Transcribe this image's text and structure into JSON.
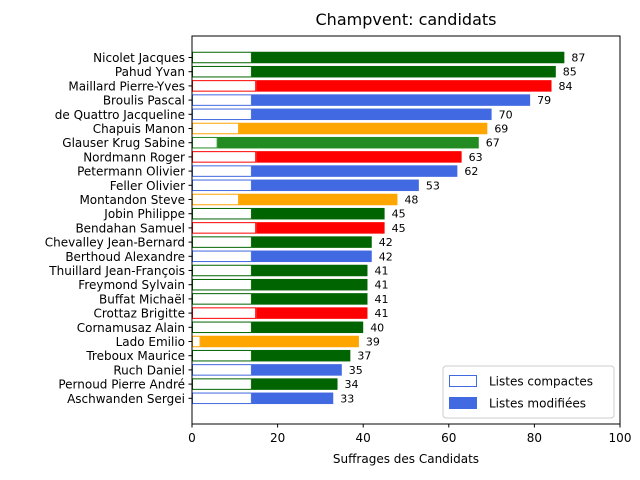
{
  "chart_data": {
    "type": "bar",
    "orientation": "horizontal",
    "title": "Champvent: candidats",
    "xlabel": "Suffrages des Candidats",
    "ylabel": "",
    "xlim": [
      0,
      100
    ],
    "xticks": [
      0,
      20,
      40,
      60,
      80,
      100
    ],
    "grid": false,
    "legend": {
      "placement": "lower-right",
      "entries": [
        {
          "label": "Listes compactes",
          "style": "outline",
          "color": "#4169e1"
        },
        {
          "label": "Listes modifiées",
          "style": "filled",
          "color": "#4169e1"
        }
      ]
    },
    "candidates": [
      {
        "name": "Nicolet Jacques",
        "total": 87,
        "compact": 14,
        "color": "#006400"
      },
      {
        "name": "Pahud Yvan",
        "total": 85,
        "compact": 14,
        "color": "#006400"
      },
      {
        "name": "Maillard Pierre-Yves",
        "total": 84,
        "compact": 15,
        "color": "#ff0000"
      },
      {
        "name": "Broulis Pascal",
        "total": 79,
        "compact": 14,
        "color": "#4169e1"
      },
      {
        "name": "de Quattro Jacqueline",
        "total": 70,
        "compact": 14,
        "color": "#4169e1"
      },
      {
        "name": "Chapuis Manon",
        "total": 69,
        "compact": 11,
        "color": "#ffa500"
      },
      {
        "name": "Glauser Krug Sabine",
        "total": 67,
        "compact": 6,
        "color": "#228b22"
      },
      {
        "name": "Nordmann Roger",
        "total": 63,
        "compact": 15,
        "color": "#ff0000"
      },
      {
        "name": "Petermann Olivier",
        "total": 62,
        "compact": 14,
        "color": "#4169e1"
      },
      {
        "name": "Feller Olivier",
        "total": 53,
        "compact": 14,
        "color": "#4169e1"
      },
      {
        "name": "Montandon Steve",
        "total": 48,
        "compact": 11,
        "color": "#ffa500"
      },
      {
        "name": "Jobin Philippe",
        "total": 45,
        "compact": 14,
        "color": "#006400"
      },
      {
        "name": "Bendahan Samuel",
        "total": 45,
        "compact": 15,
        "color": "#ff0000"
      },
      {
        "name": "Chevalley Jean-Bernard",
        "total": 42,
        "compact": 14,
        "color": "#006400"
      },
      {
        "name": "Berthoud Alexandre",
        "total": 42,
        "compact": 14,
        "color": "#4169e1"
      },
      {
        "name": "Thuillard Jean-François",
        "total": 41,
        "compact": 14,
        "color": "#006400"
      },
      {
        "name": "Freymond Sylvain",
        "total": 41,
        "compact": 14,
        "color": "#006400"
      },
      {
        "name": "Buffat Michaël",
        "total": 41,
        "compact": 14,
        "color": "#006400"
      },
      {
        "name": "Crottaz Brigitte",
        "total": 41,
        "compact": 15,
        "color": "#ff0000"
      },
      {
        "name": "Cornamusaz Alain",
        "total": 40,
        "compact": 14,
        "color": "#006400"
      },
      {
        "name": "Lado Emilio",
        "total": 39,
        "compact": 2,
        "color": "#ffa500"
      },
      {
        "name": "Treboux Maurice",
        "total": 37,
        "compact": 14,
        "color": "#006400"
      },
      {
        "name": "Ruch Daniel",
        "total": 35,
        "compact": 14,
        "color": "#4169e1"
      },
      {
        "name": "Pernoud Pierre André",
        "total": 34,
        "compact": 14,
        "color": "#006400"
      },
      {
        "name": "Aschwanden Sergei",
        "total": 33,
        "compact": 14,
        "color": "#4169e1"
      }
    ]
  }
}
